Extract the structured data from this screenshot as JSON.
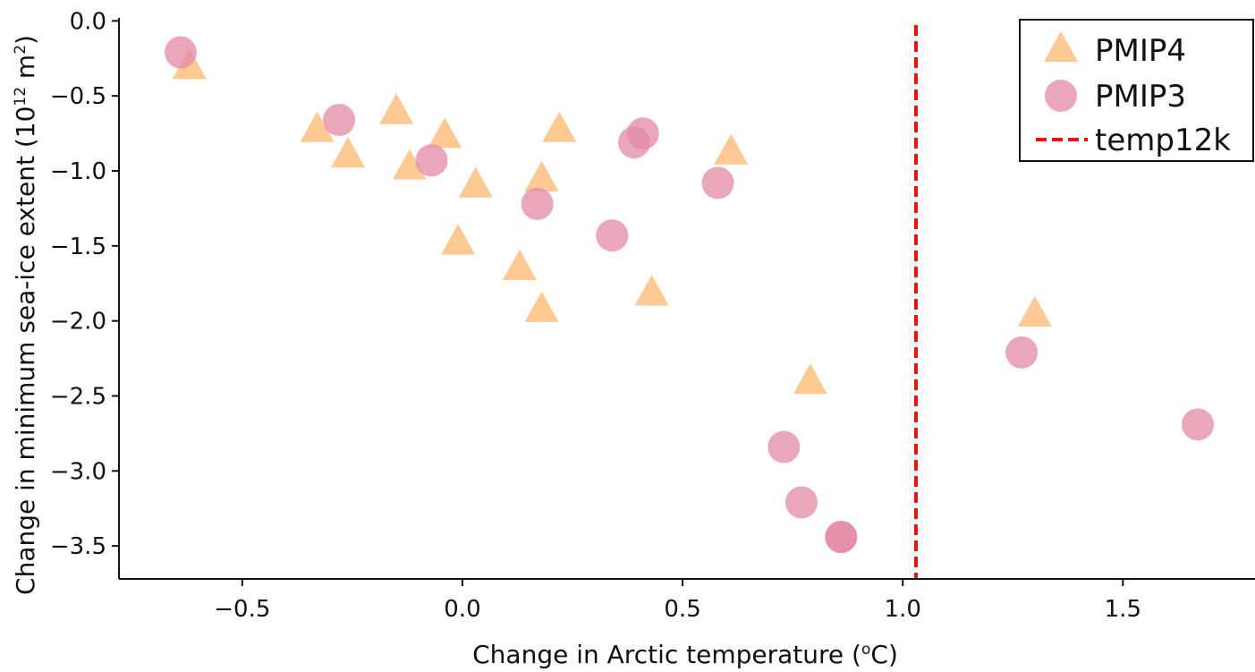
{
  "chart_data": {
    "type": "scatter",
    "xlabel": "Change in Arctic temperature (",
    "xlabel_unit_sup": "o",
    "xlabel_unit_tail": "C)",
    "ylabel": "Change in minimum sea-ice extent (10",
    "ylabel_sup": "12",
    "ylabel_unit": " m",
    "ylabel_sup2": "2",
    "ylabel_tail": ")",
    "xlim": [
      -0.78,
      1.8
    ],
    "ylim": [
      -3.72,
      0.02
    ],
    "xticks": [
      -0.5,
      0.0,
      0.5,
      1.0,
      1.5
    ],
    "xtick_labels": [
      "−0.5",
      "0.0",
      "0.5",
      "1.0",
      "1.5"
    ],
    "yticks": [
      0.0,
      -0.5,
      -1.0,
      -1.5,
      -2.0,
      -2.5,
      -3.0,
      -3.5
    ],
    "ytick_labels": [
      "0.0",
      "−0.5",
      "−1.0",
      "−1.5",
      "−2.0",
      "−2.5",
      "−3.0",
      "−3.5"
    ],
    "grid": false,
    "legend_position": "top-right",
    "series": [
      {
        "name": "PMIP4",
        "marker": "triangle",
        "color": "#ffbf80",
        "points": [
          {
            "x": -0.62,
            "y": -0.31
          },
          {
            "x": -0.33,
            "y": -0.73
          },
          {
            "x": -0.26,
            "y": -0.9
          },
          {
            "x": -0.15,
            "y": -0.61
          },
          {
            "x": -0.12,
            "y": -0.98
          },
          {
            "x": -0.04,
            "y": -0.77
          },
          {
            "x": 0.03,
            "y": -1.1
          },
          {
            "x": -0.01,
            "y": -1.48
          },
          {
            "x": 0.13,
            "y": -1.65
          },
          {
            "x": 0.18,
            "y": -1.06
          },
          {
            "x": 0.18,
            "y": -1.93
          },
          {
            "x": 0.22,
            "y": -0.73
          },
          {
            "x": 0.43,
            "y": -1.82
          },
          {
            "x": 0.61,
            "y": -0.88
          },
          {
            "x": 0.79,
            "y": -2.41
          },
          {
            "x": 1.3,
            "y": -1.96
          }
        ]
      },
      {
        "name": "PMIP3",
        "marker": "circle",
        "color": "#e38aa6",
        "points": [
          {
            "x": -0.64,
            "y": -0.21
          },
          {
            "x": -0.28,
            "y": -0.66
          },
          {
            "x": -0.07,
            "y": -0.93
          },
          {
            "x": 0.17,
            "y": -1.22
          },
          {
            "x": 0.34,
            "y": -1.43
          },
          {
            "x": 0.39,
            "y": -0.81
          },
          {
            "x": 0.41,
            "y": -0.75
          },
          {
            "x": 0.58,
            "y": -1.08
          },
          {
            "x": 0.73,
            "y": -2.84
          },
          {
            "x": 0.77,
            "y": -3.21
          },
          {
            "x": 0.86,
            "y": -3.44
          },
          {
            "x": 0.86,
            "y": -3.44
          },
          {
            "x": 1.27,
            "y": -2.21
          },
          {
            "x": 1.67,
            "y": -2.69
          }
        ]
      },
      {
        "name": "temp12k",
        "marker": "vline",
        "color": "#ee1111",
        "x": 1.03
      }
    ]
  }
}
